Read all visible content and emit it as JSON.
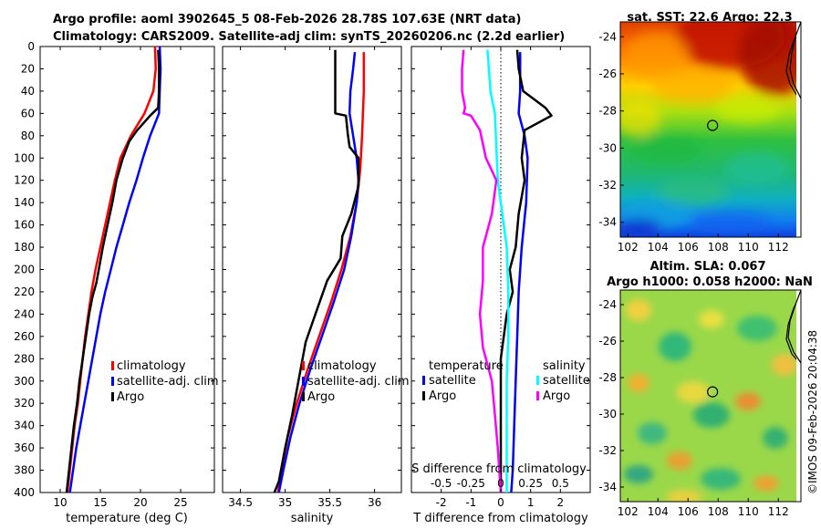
{
  "title_line1": "Argo profile: aoml 3902645_5 08-Feb-2026 28.78S 107.63E (NRT data)",
  "title_line2": "Climatology: CARS2009. Satellite-adj clim: synTS_20260206.nc (2.2d earlier)",
  "copyright": "©IMOS 09-Feb-2026 20:04:38",
  "colors": {
    "climatology": "#ff0000",
    "satellite": "#0000ff",
    "argo": "#000000",
    "sal_satellite": "#00ffff",
    "sal_argo": "#ff00ff"
  },
  "depth_ticks": [
    "0",
    "20",
    "40",
    "60",
    "80",
    "100",
    "120",
    "140",
    "160",
    "180",
    "200",
    "220",
    "240",
    "260",
    "280",
    "300",
    "320",
    "340",
    "360",
    "380",
    "400"
  ],
  "chart_data": [
    {
      "type": "line",
      "name": "temperature",
      "xlabel": "temperature (deg C)",
      "ylabel": "",
      "xlim": [
        7.5,
        29.2
      ],
      "ylim": [
        400,
        0
      ],
      "xticks": [
        "10",
        "15",
        "20",
        "25"
      ],
      "xtick_values": [
        10,
        15,
        20,
        25
      ],
      "legend": [
        "climatology",
        "satellite-adj. clim",
        "Argo"
      ],
      "series": [
        {
          "name": "climatology",
          "color": "#ff0000",
          "points": [
            [
              21.8,
              0
            ],
            [
              21.9,
              20
            ],
            [
              21.6,
              40
            ],
            [
              20.5,
              60
            ],
            [
              18.8,
              80
            ],
            [
              17.5,
              100
            ],
            [
              16.8,
              120
            ],
            [
              16.2,
              140
            ],
            [
              15.6,
              160
            ],
            [
              15.0,
              180
            ],
            [
              14.4,
              200
            ],
            [
              13.9,
              220
            ],
            [
              13.5,
              240
            ],
            [
              13.1,
              260
            ],
            [
              12.8,
              280
            ],
            [
              12.5,
              300
            ],
            [
              12.2,
              320
            ],
            [
              11.8,
              340
            ],
            [
              11.5,
              360
            ],
            [
              11.2,
              380
            ],
            [
              10.9,
              400
            ]
          ]
        },
        {
          "name": "satellite-adj. clim",
          "color": "#0000ff",
          "points": [
            [
              22.4,
              0
            ],
            [
              22.5,
              20
            ],
            [
              22.4,
              40
            ],
            [
              22.3,
              60
            ],
            [
              21.2,
              80
            ],
            [
              20.3,
              100
            ],
            [
              19.5,
              120
            ],
            [
              18.6,
              140
            ],
            [
              17.8,
              160
            ],
            [
              17.0,
              180
            ],
            [
              16.3,
              200
            ],
            [
              15.6,
              220
            ],
            [
              15.0,
              240
            ],
            [
              14.5,
              260
            ],
            [
              14.0,
              280
            ],
            [
              13.5,
              300
            ],
            [
              13.0,
              320
            ],
            [
              12.5,
              340
            ],
            [
              12.0,
              360
            ],
            [
              11.6,
              380
            ],
            [
              11.2,
              400
            ]
          ]
        },
        {
          "name": "Argo",
          "color": "#000000",
          "points": [
            [
              22.2,
              3
            ],
            [
              22.3,
              20
            ],
            [
              22.3,
              40
            ],
            [
              22.2,
              55
            ],
            [
              21.2,
              62
            ],
            [
              19.6,
              75
            ],
            [
              18.6,
              85
            ],
            [
              17.8,
              100
            ],
            [
              17.0,
              120
            ],
            [
              16.5,
              140
            ],
            [
              15.9,
              160
            ],
            [
              15.3,
              180
            ],
            [
              14.8,
              200
            ],
            [
              14.5,
              212
            ],
            [
              14.0,
              225
            ],
            [
              13.6,
              240
            ],
            [
              13.3,
              255
            ],
            [
              13.0,
              270
            ],
            [
              12.7,
              285
            ],
            [
              12.4,
              300
            ],
            [
              12.1,
              320
            ],
            [
              11.7,
              340
            ],
            [
              11.4,
              360
            ],
            [
              11.1,
              380
            ],
            [
              10.8,
              400
            ]
          ]
        }
      ]
    },
    {
      "type": "line",
      "name": "salinity",
      "xlabel": "salinity",
      "ylabel": "",
      "xlim": [
        34.3,
        36.3
      ],
      "ylim": [
        400,
        0
      ],
      "xticks": [
        "34.5",
        "35",
        "35.5",
        "36"
      ],
      "xtick_values": [
        34.5,
        35,
        35.5,
        36
      ],
      "legend": [
        "climatology",
        "satellite-adj. clim",
        "Argo"
      ],
      "series": [
        {
          "name": "climatology",
          "color": "#ff0000",
          "points": [
            [
              35.88,
              5
            ],
            [
              35.88,
              40
            ],
            [
              35.86,
              80
            ],
            [
              35.84,
              110
            ],
            [
              35.8,
              140
            ],
            [
              35.73,
              170
            ],
            [
              35.63,
              200
            ],
            [
              35.51,
              230
            ],
            [
              35.38,
              260
            ],
            [
              35.25,
              290
            ],
            [
              35.13,
              320
            ],
            [
              35.03,
              350
            ],
            [
              34.96,
              380
            ],
            [
              34.92,
              400
            ]
          ]
        },
        {
          "name": "satellite-adj. clim",
          "color": "#0000ff",
          "points": [
            [
              35.78,
              5
            ],
            [
              35.76,
              20
            ],
            [
              35.73,
              40
            ],
            [
              35.72,
              60
            ],
            [
              35.76,
              80
            ],
            [
              35.8,
              100
            ],
            [
              35.82,
              120
            ],
            [
              35.8,
              140
            ],
            [
              35.74,
              170
            ],
            [
              35.66,
              200
            ],
            [
              35.54,
              230
            ],
            [
              35.41,
              260
            ],
            [
              35.28,
              290
            ],
            [
              35.16,
              320
            ],
            [
              35.06,
              350
            ],
            [
              34.98,
              380
            ],
            [
              34.93,
              400
            ]
          ]
        },
        {
          "name": "Argo",
          "color": "#000000",
          "points": [
            [
              35.56,
              3
            ],
            [
              35.56,
              55
            ],
            [
              35.56,
              60
            ],
            [
              35.68,
              62
            ],
            [
              35.7,
              78
            ],
            [
              35.72,
              90
            ],
            [
              35.82,
              100
            ],
            [
              35.82,
              125
            ],
            [
              35.74,
              150
            ],
            [
              35.64,
              170
            ],
            [
              35.62,
              190
            ],
            [
              35.47,
              210
            ],
            [
              35.36,
              235
            ],
            [
              35.23,
              265
            ],
            [
              35.16,
              295
            ],
            [
              35.08,
              330
            ],
            [
              35.0,
              360
            ],
            [
              34.93,
              390
            ],
            [
              34.88,
              400
            ]
          ]
        }
      ]
    },
    {
      "type": "line",
      "name": "difference",
      "xlabel": "T difference from climatology",
      "ylabel": "",
      "title_bottom": "S difference from climatology",
      "xlim": [
        -3.0,
        3.0
      ],
      "ylim": [
        400,
        0
      ],
      "xticks": [
        "-2",
        "-1",
        "0",
        "1",
        "2"
      ],
      "xtick_values": [
        -2,
        -1,
        0,
        1,
        2
      ],
      "sticks": [
        "-0.5",
        "-0.25",
        "0",
        "0.25",
        "0.5"
      ],
      "stick_values": [
        -0.5,
        -0.25,
        0,
        0.25,
        0.5
      ],
      "s_scale": 4,
      "legend_left_header": "temperature",
      "legend_right_header": "salinity",
      "legend_left": [
        "satellite",
        "Argo"
      ],
      "legend_right": [
        "satellite",
        "Argo"
      ],
      "series": [
        {
          "name": "temperature satellite",
          "color": "#0000ff",
          "points": [
            [
              0.65,
              5
            ],
            [
              0.65,
              40
            ],
            [
              0.6,
              60
            ],
            [
              0.8,
              80
            ],
            [
              0.9,
              100
            ],
            [
              0.85,
              140
            ],
            [
              0.7,
              180
            ],
            [
              0.6,
              220
            ],
            [
              0.55,
              260
            ],
            [
              0.5,
              300
            ],
            [
              0.45,
              340
            ],
            [
              0.4,
              380
            ],
            [
              0.35,
              400
            ]
          ]
        },
        {
          "name": "temperature Argo",
          "color": "#000000",
          "points": [
            [
              0.55,
              3
            ],
            [
              0.6,
              20
            ],
            [
              0.75,
              40
            ],
            [
              1.5,
              55
            ],
            [
              1.7,
              62
            ],
            [
              0.8,
              75
            ],
            [
              0.7,
              100
            ],
            [
              0.8,
              120
            ],
            [
              0.6,
              150
            ],
            [
              0.5,
              180
            ],
            [
              0.3,
              200
            ],
            [
              0.4,
              220
            ],
            [
              0.2,
              240
            ],
            [
              0.0,
              280
            ],
            [
              0.0,
              330
            ],
            [
              0.0,
              360
            ],
            [
              0.0,
              400
            ]
          ]
        },
        {
          "name": "salinity satellite",
          "color": "#00ffff",
          "points": [
            [
              -0.45,
              3
            ],
            [
              -0.4,
              20
            ],
            [
              -0.35,
              40
            ],
            [
              -0.2,
              60
            ],
            [
              -0.15,
              90
            ],
            [
              -0.1,
              120
            ],
            [
              0.05,
              150
            ],
            [
              0.2,
              180
            ],
            [
              0.25,
              220
            ],
            [
              0.25,
              260
            ],
            [
              0.2,
              300
            ],
            [
              0.2,
              340
            ],
            [
              0.2,
              380
            ],
            [
              0.2,
              400
            ]
          ]
        },
        {
          "name": "salinity Argo",
          "color": "#ff00ff",
          "points": [
            [
              -1.25,
              3
            ],
            [
              -1.3,
              20
            ],
            [
              -1.3,
              40
            ],
            [
              -1.2,
              55
            ],
            [
              -1.25,
              60
            ],
            [
              -1.0,
              62
            ],
            [
              -0.7,
              75
            ],
            [
              -0.5,
              100
            ],
            [
              -0.15,
              120
            ],
            [
              -0.3,
              150
            ],
            [
              -0.6,
              180
            ],
            [
              -0.6,
              210
            ],
            [
              -0.7,
              240
            ],
            [
              -0.6,
              270
            ],
            [
              -0.3,
              300
            ],
            [
              -0.2,
              330
            ],
            [
              -0.1,
              360
            ],
            [
              0.0,
              400
            ]
          ]
        }
      ]
    },
    {
      "type": "heatmap",
      "name": "sst_map",
      "title": "sat. SST: 22.6 Argo: 22.3",
      "xlim": [
        101.5,
        113.5
      ],
      "ylim": [
        -34.8,
        -23.2
      ],
      "xticks": [
        "102",
        "104",
        "106",
        "108",
        "110",
        "112"
      ],
      "xtick_values": [
        102,
        104,
        106,
        108,
        110,
        112
      ],
      "yticks": [
        "-24",
        "-26",
        "-28",
        "-30",
        "-32",
        "-34"
      ],
      "ytick_values": [
        -24,
        -26,
        -28,
        -30,
        -32,
        -34
      ],
      "argo_position": [
        107.63,
        -28.78
      ]
    },
    {
      "type": "heatmap",
      "name": "sla_map",
      "title_line1": "Altim. SLA: 0.067",
      "title_line2": "Argo h1000: 0.058 h2000: NaN",
      "xlim": [
        101.5,
        113.5
      ],
      "ylim": [
        -34.8,
        -23.2
      ],
      "xticks": [
        "102",
        "104",
        "106",
        "108",
        "110",
        "112"
      ],
      "xtick_values": [
        102,
        104,
        106,
        108,
        110,
        112
      ],
      "yticks": [
        "-24",
        "-26",
        "-28",
        "-30",
        "-32",
        "-34"
      ],
      "ytick_values": [
        -24,
        -26,
        -28,
        -30,
        -32,
        -34
      ],
      "argo_position": [
        107.63,
        -28.78
      ]
    }
  ]
}
